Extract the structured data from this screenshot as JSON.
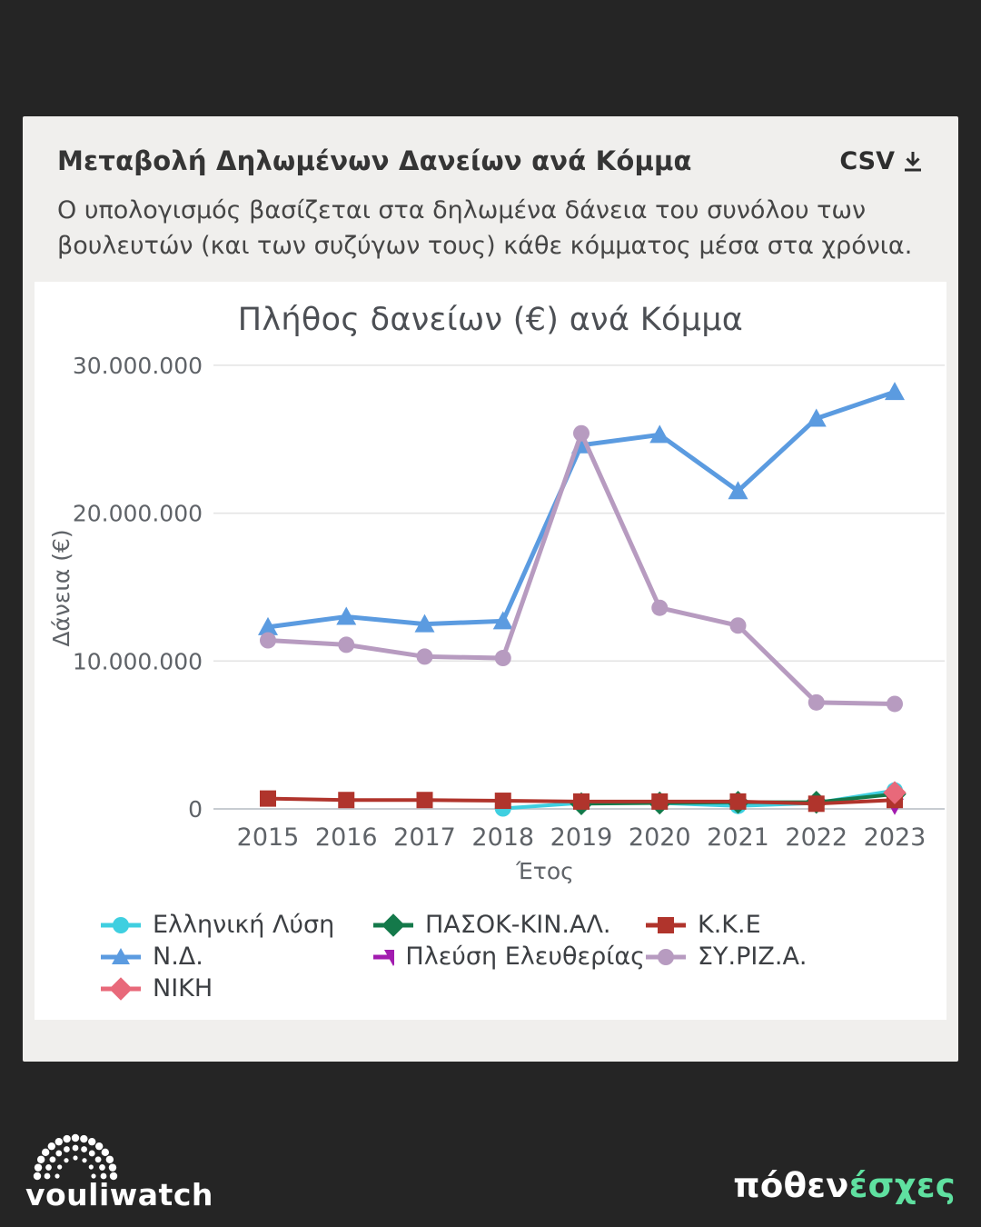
{
  "header": {
    "title": "Μεταβολή Δηλωμένων Δανείων ανά Κόμμα",
    "csv_label": "CSV",
    "subtitle": "Ο υπολογισμός βασίζεται στα δηλωμένα δάνεια του συνόλου των βουλευτών (και των συζύγων τους) κάθε κόμματος μέσα στα χρόνια."
  },
  "chart_data": {
    "type": "line",
    "title": "Πλήθος δανείων (€) ανά Κόμμα",
    "xlabel": "Έτος",
    "ylabel": "Δάνεια (€)",
    "x": [
      2015,
      2016,
      2017,
      2018,
      2019,
      2020,
      2021,
      2022,
      2023
    ],
    "ylim": [
      0,
      30000000
    ],
    "yticks": [
      0,
      10000000,
      20000000,
      30000000
    ],
    "ytick_labels": [
      "0",
      "10.000.000",
      "20.000.000",
      "30.000.000"
    ],
    "grid": true,
    "legend_position": "bottom",
    "series": [
      {
        "name": "Ελληνική Λύση",
        "color": "#3FCFE0",
        "marker": "circle",
        "line_width": 4,
        "values": [
          null,
          null,
          null,
          30000,
          400000,
          400000,
          200000,
          400000,
          1250000
        ]
      },
      {
        "name": "ΠΑΣΟΚ-ΚΙΝ.ΑΛ.",
        "color": "#14794A",
        "marker": "diamond",
        "line_width": 4,
        "values": [
          null,
          null,
          null,
          null,
          350000,
          400000,
          450000,
          450000,
          1000000
        ]
      },
      {
        "name": "Κ.Κ.Ε",
        "color": "#B0342C",
        "marker": "square",
        "line_width": 4,
        "values": [
          700000,
          600000,
          600000,
          550000,
          500000,
          500000,
          500000,
          350000,
          600000
        ]
      },
      {
        "name": "Ν.Δ.",
        "color": "#5B9BE0",
        "marker": "triangle",
        "line_width": 5,
        "values": [
          12300000,
          13000000,
          12500000,
          12700000,
          24600000,
          25300000,
          21500000,
          26400000,
          28200000
        ]
      },
      {
        "name": "Πλεύση Ελευθερίας",
        "color": "#A21CAF",
        "marker": "triangle-down",
        "line_width": 4,
        "values": [
          null,
          null,
          null,
          null,
          null,
          null,
          null,
          null,
          200000
        ]
      },
      {
        "name": "ΣΥ.ΡΙΖ.Α.",
        "color": "#B79BC0",
        "marker": "circle",
        "line_width": 5,
        "values": [
          11400000,
          11100000,
          10300000,
          10200000,
          25400000,
          13600000,
          12400000,
          7200000,
          7100000
        ]
      },
      {
        "name": "ΝΙΚΗ",
        "color": "#E8697A",
        "marker": "diamond",
        "line_width": 4,
        "values": [
          null,
          null,
          null,
          null,
          null,
          null,
          null,
          null,
          1100000
        ]
      }
    ],
    "draw_order": [
      "Ελληνική Λύση",
      "ΠΑΣΟΚ-ΚΙΝ.ΑΛ.",
      "Πλεύση Ελευθερίας",
      "Ν.Δ.",
      "ΣΥ.ΡΙΖ.Α.",
      "Κ.Κ.Ε",
      "ΝΙΚΗ"
    ],
    "legend_display_order": [
      "Ελληνική Λύση",
      "ΠΑΣΟΚ-ΚΙΝ.ΑΛ.",
      "Κ.Κ.Ε",
      "Ν.Δ.",
      "Πλεύση Ελευθερίας",
      "ΣΥ.ΡΙΖ.Α.",
      "ΝΙΚΗ"
    ]
  },
  "colors": {
    "page_bg": "#252525",
    "card_bg": "#F0EFED",
    "panel_bg": "#FFFFFF",
    "gridline": "#E3E3E3",
    "zero_line": "#C7CCD1",
    "tick_text": "#5F6368",
    "pothen_green": "#5FE0A0"
  },
  "footer": {
    "vouliwatch_text": "vouliwatch",
    "pothen_white": "πόθεν",
    "pothen_green": "έσχες"
  }
}
